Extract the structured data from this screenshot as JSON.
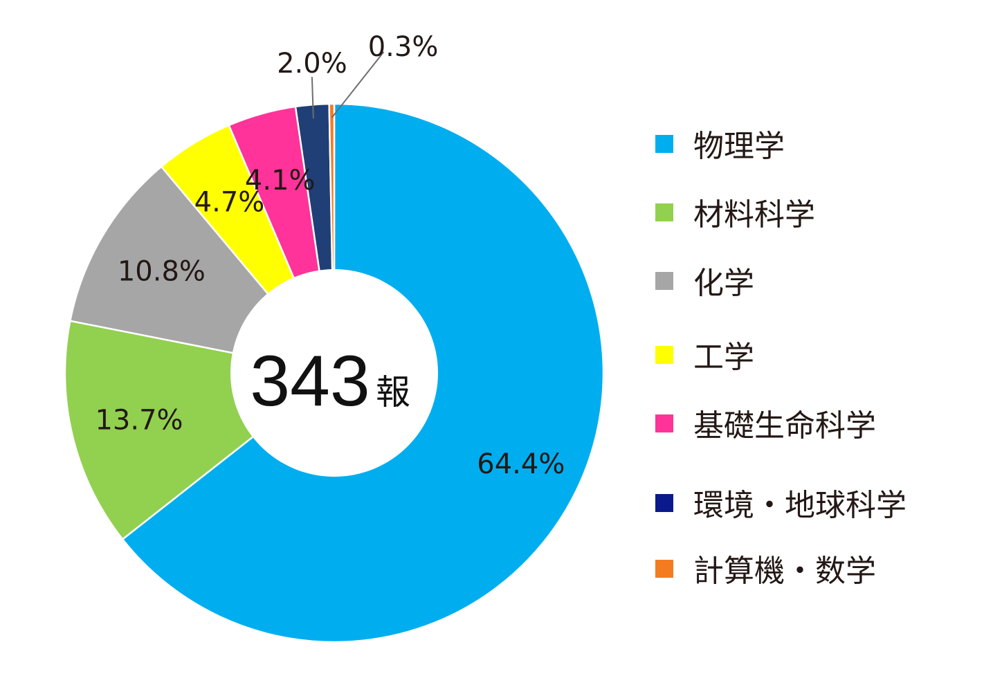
{
  "chart_data": {
    "type": "pie",
    "center_total": "343",
    "center_unit": "報",
    "slices": [
      {
        "label": "物理学",
        "value": 64.4,
        "value_label": "64.4%",
        "color": "#00AEEF"
      },
      {
        "label": "材料科学",
        "value": 13.7,
        "value_label": "13.7%",
        "color": "#92D050"
      },
      {
        "label": "化学",
        "value": 10.8,
        "value_label": "10.8%",
        "color": "#A6A6A6"
      },
      {
        "label": "工学",
        "value": 4.7,
        "value_label": "4.7%",
        "color": "#FFFF00"
      },
      {
        "label": "基礎生命科学",
        "value": 4.1,
        "value_label": "4.1%",
        "color": "#FF3399"
      },
      {
        "label": "環境・地球科学",
        "value": 2.0,
        "value_label": "2.0%",
        "color": "#1F3F76",
        "legend_color": "#0A1A8C"
      },
      {
        "label": "計算機・数学",
        "value": 0.3,
        "value_label": "0.3%",
        "color": "#F47B20"
      }
    ],
    "legend_placement": "right"
  }
}
